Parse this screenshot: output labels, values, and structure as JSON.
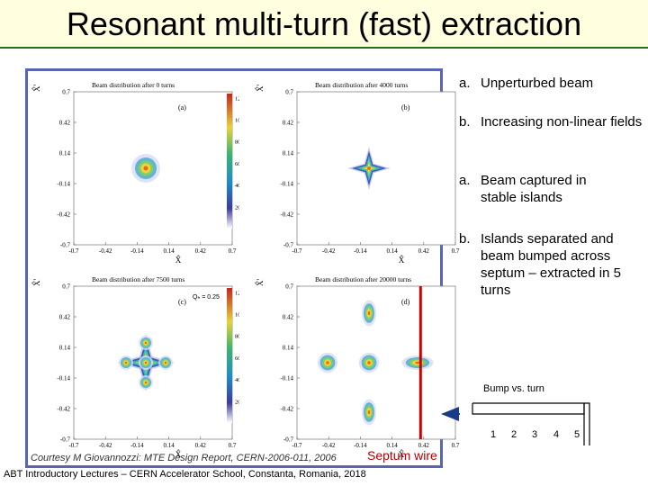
{
  "slide": {
    "title": "Resonant multi-turn (fast) extraction",
    "footer": "ABT Introductory Lectures – CERN Accelerator School, Constanta, Romania, 2018"
  },
  "figure": {
    "courtesy": "Courtesy M Giovannozzi: MTE Design Report, CERN-2006-011, 2006",
    "septum_label": "Septum wire",
    "qh_label": "Qₕ = 0.25",
    "panels": [
      {
        "title": "Beam distribution after   0 turns",
        "tag": "(a)"
      },
      {
        "title": "Beam distribution after   4000 turns",
        "tag": "(b)"
      },
      {
        "title": "Beam distribution after   7500 turns",
        "tag": "(c)"
      },
      {
        "title": "Beam distribution after 20000 turns",
        "tag": "(d)"
      }
    ],
    "axis_ticks": [
      "-0.7",
      "-0.42",
      "-0.14",
      "0.14",
      "0.42",
      "0.7"
    ],
    "x_label": "X̂",
    "y_label": "X̂'",
    "colorbar_ticks": [
      "200",
      "400",
      "600",
      "800",
      "1000",
      "1200"
    ]
  },
  "annotations": [
    {
      "marker": "a.",
      "text": "Unperturbed beam"
    },
    {
      "marker": "b.",
      "text": "Increasing non-linear fields"
    },
    {
      "marker": "a.",
      "text": "Beam captured in stable islands"
    },
    {
      "marker": "b.",
      "text": "Islands separated and beam bumped across septum – extracted in 5 turns"
    }
  ],
  "bump": {
    "title": "Bump vs. turn",
    "labels": [
      "1",
      "2",
      "3",
      "4",
      "5"
    ]
  },
  "colors": {
    "title_bg": "#ffffe0",
    "title_rule": "#2e6b1f",
    "figure_border": "#5a64b4",
    "septum": "#cc0000",
    "arrow": "#1a3a8a"
  }
}
